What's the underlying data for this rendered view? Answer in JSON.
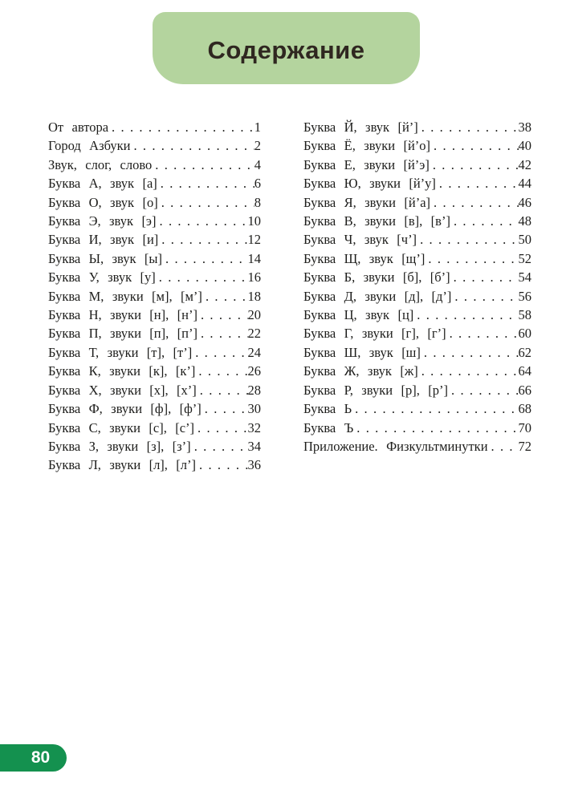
{
  "header": {
    "title": "Содержание"
  },
  "footer": {
    "page_number": "80"
  },
  "colors": {
    "header_bg": "#b4d49e",
    "title": "#2f2720",
    "body_text": "#1d1d1b",
    "footer_bg": "#14914f",
    "footer_text": "#ffffff"
  },
  "toc": {
    "left": [
      {
        "label": "От автора",
        "page": "1"
      },
      {
        "label": "Город Азбуки",
        "page": "2"
      },
      {
        "label": "Звук, слог, слово",
        "page": "4"
      },
      {
        "label": "Буква А, звук [а]",
        "page": "6"
      },
      {
        "label": "Буква О, звук [о]",
        "page": "8"
      },
      {
        "label": "Буква Э, звук [э]",
        "page": "10"
      },
      {
        "label": "Буква И, звук [и]",
        "page": "12"
      },
      {
        "label": "Буква Ы, звук [ы]",
        "page": "14"
      },
      {
        "label": "Буква У, звук [у]",
        "page": "16"
      },
      {
        "label": "Буква М, звуки [м], [м’]",
        "page": "18"
      },
      {
        "label": "Буква Н, звуки [н], [н’]",
        "page": "20"
      },
      {
        "label": "Буква П, звуки [п], [п’]",
        "page": "22"
      },
      {
        "label": "Буква Т, звуки [т], [т’]",
        "page": "24"
      },
      {
        "label": "Буква К, звуки [к], [к’]",
        "page": "26"
      },
      {
        "label": "Буква Х, звуки [х], [х’]",
        "page": "28"
      },
      {
        "label": "Буква Ф, звуки [ф], [ф’]",
        "page": "30"
      },
      {
        "label": "Буква С, звуки [с], [с’]",
        "page": "32"
      },
      {
        "label": "Буква З, звуки [з], [з’]",
        "page": "34"
      },
      {
        "label": "Буква Л, звуки [л], [л’]",
        "page": "36"
      }
    ],
    "right": [
      {
        "label": "Буква Й, звук [й’]",
        "page": "38"
      },
      {
        "label": "Буква Ё, звуки [й’о]",
        "page": "40"
      },
      {
        "label": "Буква Е, звуки [й’э]",
        "page": "42"
      },
      {
        "label": "Буква Ю, звуки [й’у]",
        "page": "44"
      },
      {
        "label": "Буква Я, звуки [й’а]",
        "page": "46"
      },
      {
        "label": "Буква В, звуки [в], [в’]",
        "page": "48"
      },
      {
        "label": "Буква Ч, звук [ч’]",
        "page": "50"
      },
      {
        "label": "Буква Щ, звук [щ’]",
        "page": "52"
      },
      {
        "label": "Буква Б, звуки [б], [б’]",
        "page": "54"
      },
      {
        "label": "Буква Д, звуки [д], [д’]",
        "page": "56"
      },
      {
        "label": "Буква Ц, звук [ц]",
        "page": "58"
      },
      {
        "label": "Буква Г, звуки [г], [г’]",
        "page": "60"
      },
      {
        "label": "Буква Ш, звук [ш]",
        "page": "62"
      },
      {
        "label": "Буква Ж, звук [ж]",
        "page": "64"
      },
      {
        "label": "Буква Р, звуки [р], [р’]",
        "page": "66"
      },
      {
        "label": "Буква Ь",
        "page": "68"
      },
      {
        "label": "Буква Ъ",
        "page": "70"
      },
      {
        "label": "Приложение. Физкультминутки",
        "page": "72"
      }
    ]
  }
}
